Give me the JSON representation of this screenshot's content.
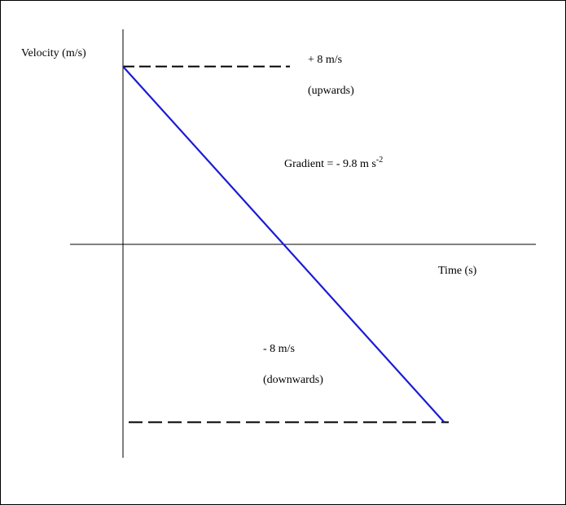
{
  "chart_data": {
    "type": "line",
    "xlabel": "Time (s)",
    "ylabel": "Velocity (m/s)",
    "series": [
      {
        "values": [
          8,
          -8
        ],
        "color": "#1a1ad6"
      }
    ],
    "x": [
      0,
      1.63
    ],
    "ylim": [
      -8,
      8
    ],
    "reference_lines": [
      {
        "y": 8,
        "style": "dashed"
      },
      {
        "y": -8,
        "style": "dashed"
      }
    ],
    "annotations": {
      "top_value": "+ 8 m/s",
      "top_direction": "(upwards)",
      "gradient_text": "Gradient = - 9.8 m s",
      "gradient_exponent": "-2",
      "bottom_value": "-  8 m/s",
      "bottom_direction": "(downwards)"
    }
  }
}
